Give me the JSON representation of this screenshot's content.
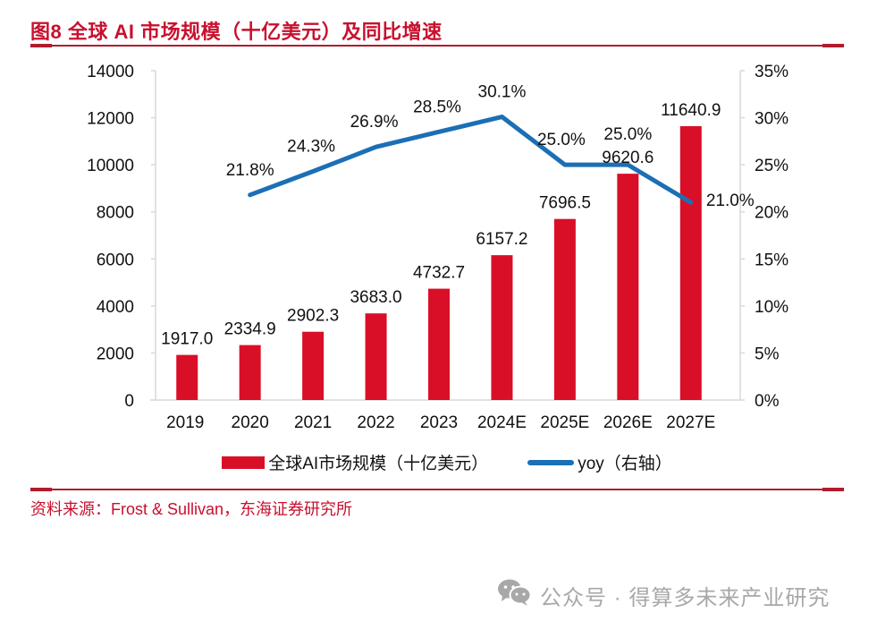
{
  "title": "图8  全球 AI 市场规模（十亿美元）及同比增速",
  "source": "资料来源：Frost & Sullivan，东海证券研究所",
  "watermark": {
    "icon": "wechat-icon",
    "text": "公众号 · 得算多未来产业研究"
  },
  "colors": {
    "bar": "#d90f27",
    "line": "#1b6fb5",
    "title": "#c8102e",
    "axis": "#d9d9d9"
  },
  "chart_data": {
    "type": "bar+line",
    "title": "全球 AI 市场规模（十亿美元）及同比增速",
    "categories": [
      "2019",
      "2020",
      "2021",
      "2022",
      "2023",
      "2024E",
      "2025E",
      "2026E",
      "2027E"
    ],
    "series": [
      {
        "name": "全球AI市场规模（十亿美元）",
        "type": "bar",
        "axis": "left",
        "values": [
          1917.0,
          2334.9,
          2902.3,
          3683.0,
          4732.7,
          6157.2,
          7696.5,
          9620.6,
          11640.9
        ],
        "labels": [
          "1917.0",
          "2334.9",
          "2902.3",
          "3683.0",
          "4732.7",
          "6157.2",
          "7696.5",
          "9620.6",
          "11640.9"
        ]
      },
      {
        "name": "yoy（右轴）",
        "type": "line",
        "axis": "right",
        "values": [
          null,
          21.8,
          24.3,
          26.9,
          28.5,
          30.1,
          25.0,
          25.0,
          21.0
        ],
        "labels": [
          null,
          "21.8%",
          "24.3%",
          "26.9%",
          "28.5%",
          "30.1%",
          "25.0%",
          "25.0%",
          "21.0%"
        ]
      }
    ],
    "y_left": {
      "range": [
        0,
        14000
      ],
      "ticks": [
        "0",
        "2000",
        "4000",
        "6000",
        "8000",
        "10000",
        "12000",
        "14000"
      ]
    },
    "y_right": {
      "range": [
        0,
        35
      ],
      "ticks": [
        "0%",
        "5%",
        "10%",
        "15%",
        "20%",
        "25%",
        "30%",
        "35%"
      ]
    },
    "xlabel": "",
    "ylabel": "",
    "grid": false,
    "legend": {
      "position": "bottom",
      "entries": [
        "全球AI市场规模（十亿美元）",
        "yoy（右轴）"
      ]
    }
  }
}
